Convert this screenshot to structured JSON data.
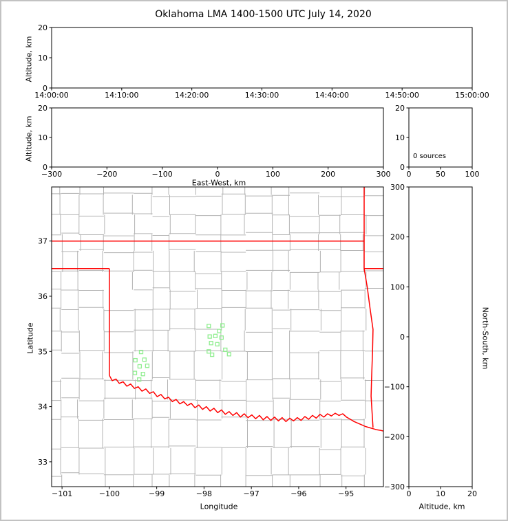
{
  "figure": {
    "title": "Oklahoma LMA 1400-1500 UTC July 14, 2020"
  },
  "colors": {
    "background": "#ffffff",
    "frame": "#c2c2c2",
    "axis": "#000000",
    "county_lines": "#b3b3b3",
    "state_border": "#ff0000",
    "station_marker": "#90ee90"
  },
  "chart_data": [
    {
      "id": "time_height",
      "name": "altitude-vs-time",
      "type": "scatter",
      "xlabel": "",
      "ylabel": "Altitude, km",
      "xlim": [
        0,
        3600
      ],
      "ylim": [
        0,
        20
      ],
      "xticks": [
        0,
        600,
        1200,
        1800,
        2400,
        3000,
        3600
      ],
      "xticklabels": [
        "14:00:00",
        "14:10:00",
        "14:20:00",
        "14:30:00",
        "14:40:00",
        "14:50:00",
        "15:00:00"
      ],
      "yticks": [
        0,
        10,
        20
      ],
      "series": []
    },
    {
      "id": "ew_height",
      "name": "altitude-vs-east-west",
      "type": "scatter",
      "xlabel": "East-West, km",
      "ylabel": "Altitude, km",
      "xlim": [
        -300,
        300
      ],
      "ylim": [
        0,
        20
      ],
      "xticks": [
        -300,
        -200,
        -100,
        0,
        100,
        200,
        300
      ],
      "xticklabels": [
        "−300",
        "−200",
        "−100",
        "0",
        "100",
        "200",
        "300"
      ],
      "yticks": [
        0,
        10,
        20
      ],
      "series": []
    },
    {
      "id": "alt_histogram",
      "name": "altitude-histogram",
      "type": "line",
      "xlabel": "",
      "ylabel": "",
      "xlim": [
        0,
        100
      ],
      "ylim": [
        0,
        20
      ],
      "xticks": [
        0,
        50,
        100
      ],
      "yticks": [
        0,
        10,
        20
      ],
      "annotation": "0 sources",
      "series": []
    },
    {
      "id": "map",
      "name": "plan-view-map",
      "type": "scatter",
      "xlabel": "Longitude",
      "ylabel": "Latitude",
      "xlim": [
        -101.22,
        -94.21
      ],
      "ylim": [
        32.55,
        37.98
      ],
      "xticks": [
        -101,
        -100,
        -99,
        -98,
        -97,
        -96,
        -95
      ],
      "xticklabels": [
        "−101",
        "−100",
        "−99",
        "−98",
        "−97",
        "−96",
        "−95"
      ],
      "yticks": [
        33,
        34,
        35,
        36,
        37
      ],
      "stations": [
        [
          -97.9,
          35.46
        ],
        [
          -97.61,
          35.47
        ],
        [
          -97.68,
          35.37
        ],
        [
          -97.88,
          35.27
        ],
        [
          -97.76,
          35.28
        ],
        [
          -97.63,
          35.25
        ],
        [
          -97.85,
          35.15
        ],
        [
          -97.72,
          35.13
        ],
        [
          -97.9,
          35.0
        ],
        [
          -97.55,
          35.03
        ],
        [
          -97.83,
          34.94
        ],
        [
          -97.47,
          34.95
        ],
        [
          -99.33,
          34.99
        ],
        [
          -99.45,
          34.84
        ],
        [
          -99.26,
          34.85
        ],
        [
          -99.36,
          34.73
        ],
        [
          -99.2,
          34.74
        ],
        [
          -99.46,
          34.61
        ],
        [
          -99.29,
          34.59
        ],
        [
          -99.37,
          34.49
        ]
      ],
      "state_border": [
        [
          [
            -101.25,
            37.0
          ],
          [
            -94.617,
            37.0
          ]
        ],
        [
          [
            -94.617,
            37.99
          ],
          [
            -94.617,
            36.5
          ]
        ],
        [
          [
            -94.617,
            36.5
          ],
          [
            -94.2,
            36.5
          ]
        ],
        [
          [
            -94.617,
            36.5
          ],
          [
            -94.55,
            36.16
          ],
          [
            -94.49,
            35.77
          ],
          [
            -94.43,
            35.4
          ],
          [
            -94.44,
            35.0
          ],
          [
            -94.46,
            34.5
          ],
          [
            -94.47,
            34.19
          ],
          [
            -94.43,
            33.62
          ]
        ],
        [
          [
            -101.25,
            36.5
          ],
          [
            -100.0,
            36.5
          ]
        ],
        [
          [
            -100.0,
            36.5
          ],
          [
            -100.0,
            34.565
          ]
        ]
      ],
      "red_river": [
        [
          -100.0,
          34.565
        ],
        [
          -99.94,
          34.47
        ],
        [
          -99.86,
          34.5
        ],
        [
          -99.79,
          34.42
        ],
        [
          -99.71,
          34.45
        ],
        [
          -99.63,
          34.37
        ],
        [
          -99.55,
          34.41
        ],
        [
          -99.47,
          34.33
        ],
        [
          -99.39,
          34.36
        ],
        [
          -99.31,
          34.28
        ],
        [
          -99.23,
          34.32
        ],
        [
          -99.15,
          34.24
        ],
        [
          -99.07,
          34.27
        ],
        [
          -98.99,
          34.18
        ],
        [
          -98.91,
          34.22
        ],
        [
          -98.83,
          34.14
        ],
        [
          -98.75,
          34.17
        ],
        [
          -98.67,
          34.09
        ],
        [
          -98.59,
          34.13
        ],
        [
          -98.51,
          34.05
        ],
        [
          -98.43,
          34.09
        ],
        [
          -98.35,
          34.02
        ],
        [
          -98.27,
          34.06
        ],
        [
          -98.19,
          33.98
        ],
        [
          -98.11,
          34.03
        ],
        [
          -98.03,
          33.95
        ],
        [
          -97.95,
          34.0
        ],
        [
          -97.87,
          33.92
        ],
        [
          -97.79,
          33.97
        ],
        [
          -97.71,
          33.89
        ],
        [
          -97.63,
          33.94
        ],
        [
          -97.55,
          33.86
        ],
        [
          -97.47,
          33.91
        ],
        [
          -97.39,
          33.84
        ],
        [
          -97.31,
          33.89
        ],
        [
          -97.23,
          33.81
        ],
        [
          -97.15,
          33.87
        ],
        [
          -97.07,
          33.8
        ],
        [
          -96.99,
          33.85
        ],
        [
          -96.91,
          33.78
        ],
        [
          -96.83,
          33.84
        ],
        [
          -96.75,
          33.76
        ],
        [
          -96.67,
          33.82
        ],
        [
          -96.59,
          33.75
        ],
        [
          -96.51,
          33.81
        ],
        [
          -96.43,
          33.74
        ],
        [
          -96.35,
          33.8
        ],
        [
          -96.27,
          33.73
        ],
        [
          -96.19,
          33.79
        ],
        [
          -96.11,
          33.74
        ],
        [
          -96.03,
          33.8
        ],
        [
          -95.95,
          33.75
        ],
        [
          -95.87,
          33.82
        ],
        [
          -95.79,
          33.77
        ],
        [
          -95.71,
          33.84
        ],
        [
          -95.63,
          33.79
        ],
        [
          -95.55,
          33.86
        ],
        [
          -95.47,
          33.81
        ],
        [
          -95.39,
          33.87
        ],
        [
          -95.31,
          33.83
        ],
        [
          -95.23,
          33.88
        ],
        [
          -95.15,
          33.84
        ],
        [
          -95.07,
          33.87
        ],
        [
          -94.99,
          33.81
        ],
        [
          -94.91,
          33.77
        ],
        [
          -94.83,
          33.73
        ],
        [
          -94.75,
          33.7
        ],
        [
          -94.67,
          33.67
        ],
        [
          -94.59,
          33.64
        ],
        [
          -94.51,
          33.62
        ],
        [
          -94.43,
          33.6
        ],
        [
          -94.35,
          33.58
        ],
        [
          -94.27,
          33.57
        ],
        [
          -94.18,
          33.55
        ]
      ],
      "county_grid": {
        "seed": 12,
        "lon_min": -101.45,
        "lon_max": -93.95,
        "lat_min": 32.35,
        "lat_max": 38.15,
        "col_step": 0.5,
        "row_step": 0.41,
        "jitter": 0.07,
        "skip": 0.07
      }
    },
    {
      "id": "ns_height",
      "name": "north-south-vs-altitude",
      "type": "scatter",
      "xlabel": "Altitude, km",
      "ylabel_right": "North-South, km",
      "xlim": [
        0,
        20
      ],
      "ylim": [
        -300,
        300
      ],
      "xticks": [
        0,
        10,
        20
      ],
      "yticks": [
        -300,
        -200,
        -100,
        0,
        100,
        200,
        300
      ],
      "yticklabels": [
        "−300",
        "−200",
        "−100",
        "0",
        "100",
        "200",
        "300"
      ],
      "series": []
    }
  ]
}
